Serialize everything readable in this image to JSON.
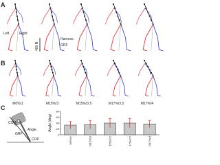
{
  "figure": {
    "panels": [
      "A",
      "B",
      "C"
    ],
    "annotations": {
      "left": "Left",
      "right": "Right",
      "harness": "Harness",
      "grf": "GRF",
      "scale": "400 N"
    },
    "conditions": [
      "M0%/1",
      "M15%/3",
      "M15%/3.5",
      "M17%/3.5",
      "M17%/4"
    ],
    "diagram": {
      "com": "COM",
      "grf": "GRF",
      "cop": "COP",
      "angle": "Angle"
    }
  },
  "chart_data": {
    "type": "bar",
    "y_label": "Angle (deg)",
    "categories": [
      "M0%/1",
      "M15%/3",
      "M15%/3.5",
      "M17%/3.5",
      "M17%/4"
    ],
    "values": [
      33,
      35,
      40,
      40,
      37
    ],
    "errors": [
      12,
      14,
      16,
      16,
      12
    ],
    "color": "#c8c8c8",
    "error_color": "#e02020",
    "ylim": [
      0,
      80
    ],
    "yticks": [
      0,
      20,
      40,
      60,
      80
    ]
  }
}
